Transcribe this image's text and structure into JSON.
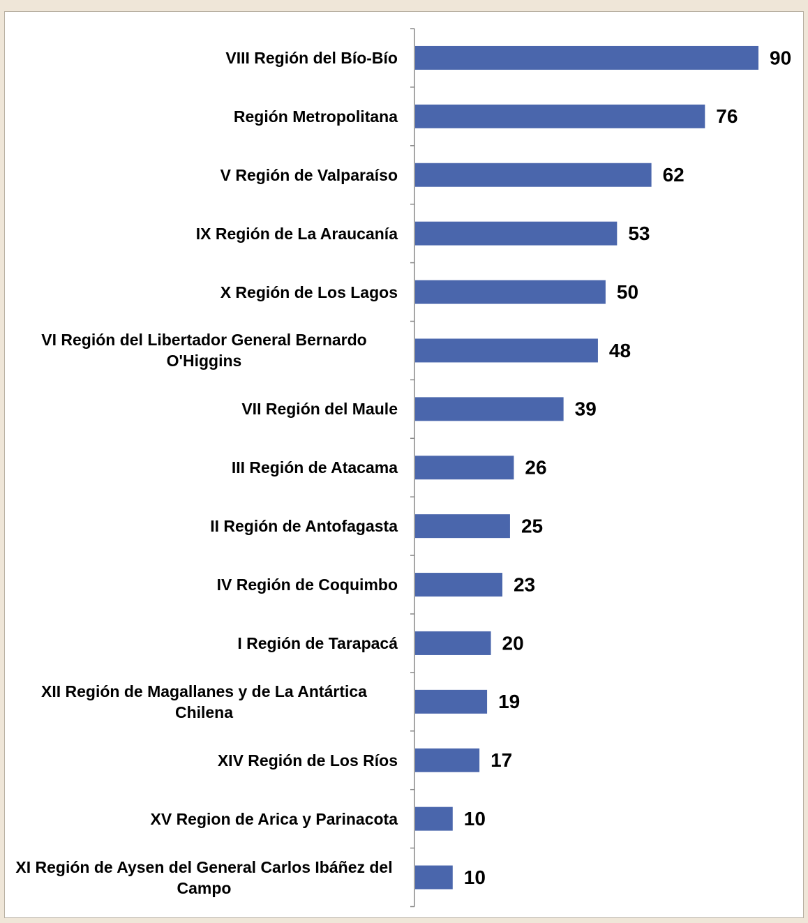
{
  "chart_data": {
    "type": "bar",
    "orientation": "horizontal",
    "categories": [
      "VIII Región del Bío-Bío",
      "Región Metropolitana",
      "V Región de Valparaíso",
      "IX Región de La Araucanía",
      "X Región de Los Lagos",
      "VI Región del Libertador General Bernardo O'Higgins",
      "VII Región del Maule",
      "III Región de Atacama",
      "II Región de Antofagasta",
      "IV Región de Coquimbo",
      "I Región de Tarapacá",
      "XII Región de Magallanes y de La Antártica Chilena",
      "XIV Región de Los Ríos",
      "XV Region de Arica y Parinacota",
      "XI Región de Aysen del General Carlos Ibáñez del Campo"
    ],
    "values": [
      90,
      76,
      62,
      53,
      50,
      48,
      39,
      26,
      25,
      23,
      20,
      19,
      17,
      10,
      10
    ],
    "color": "#4a66ac"
  }
}
